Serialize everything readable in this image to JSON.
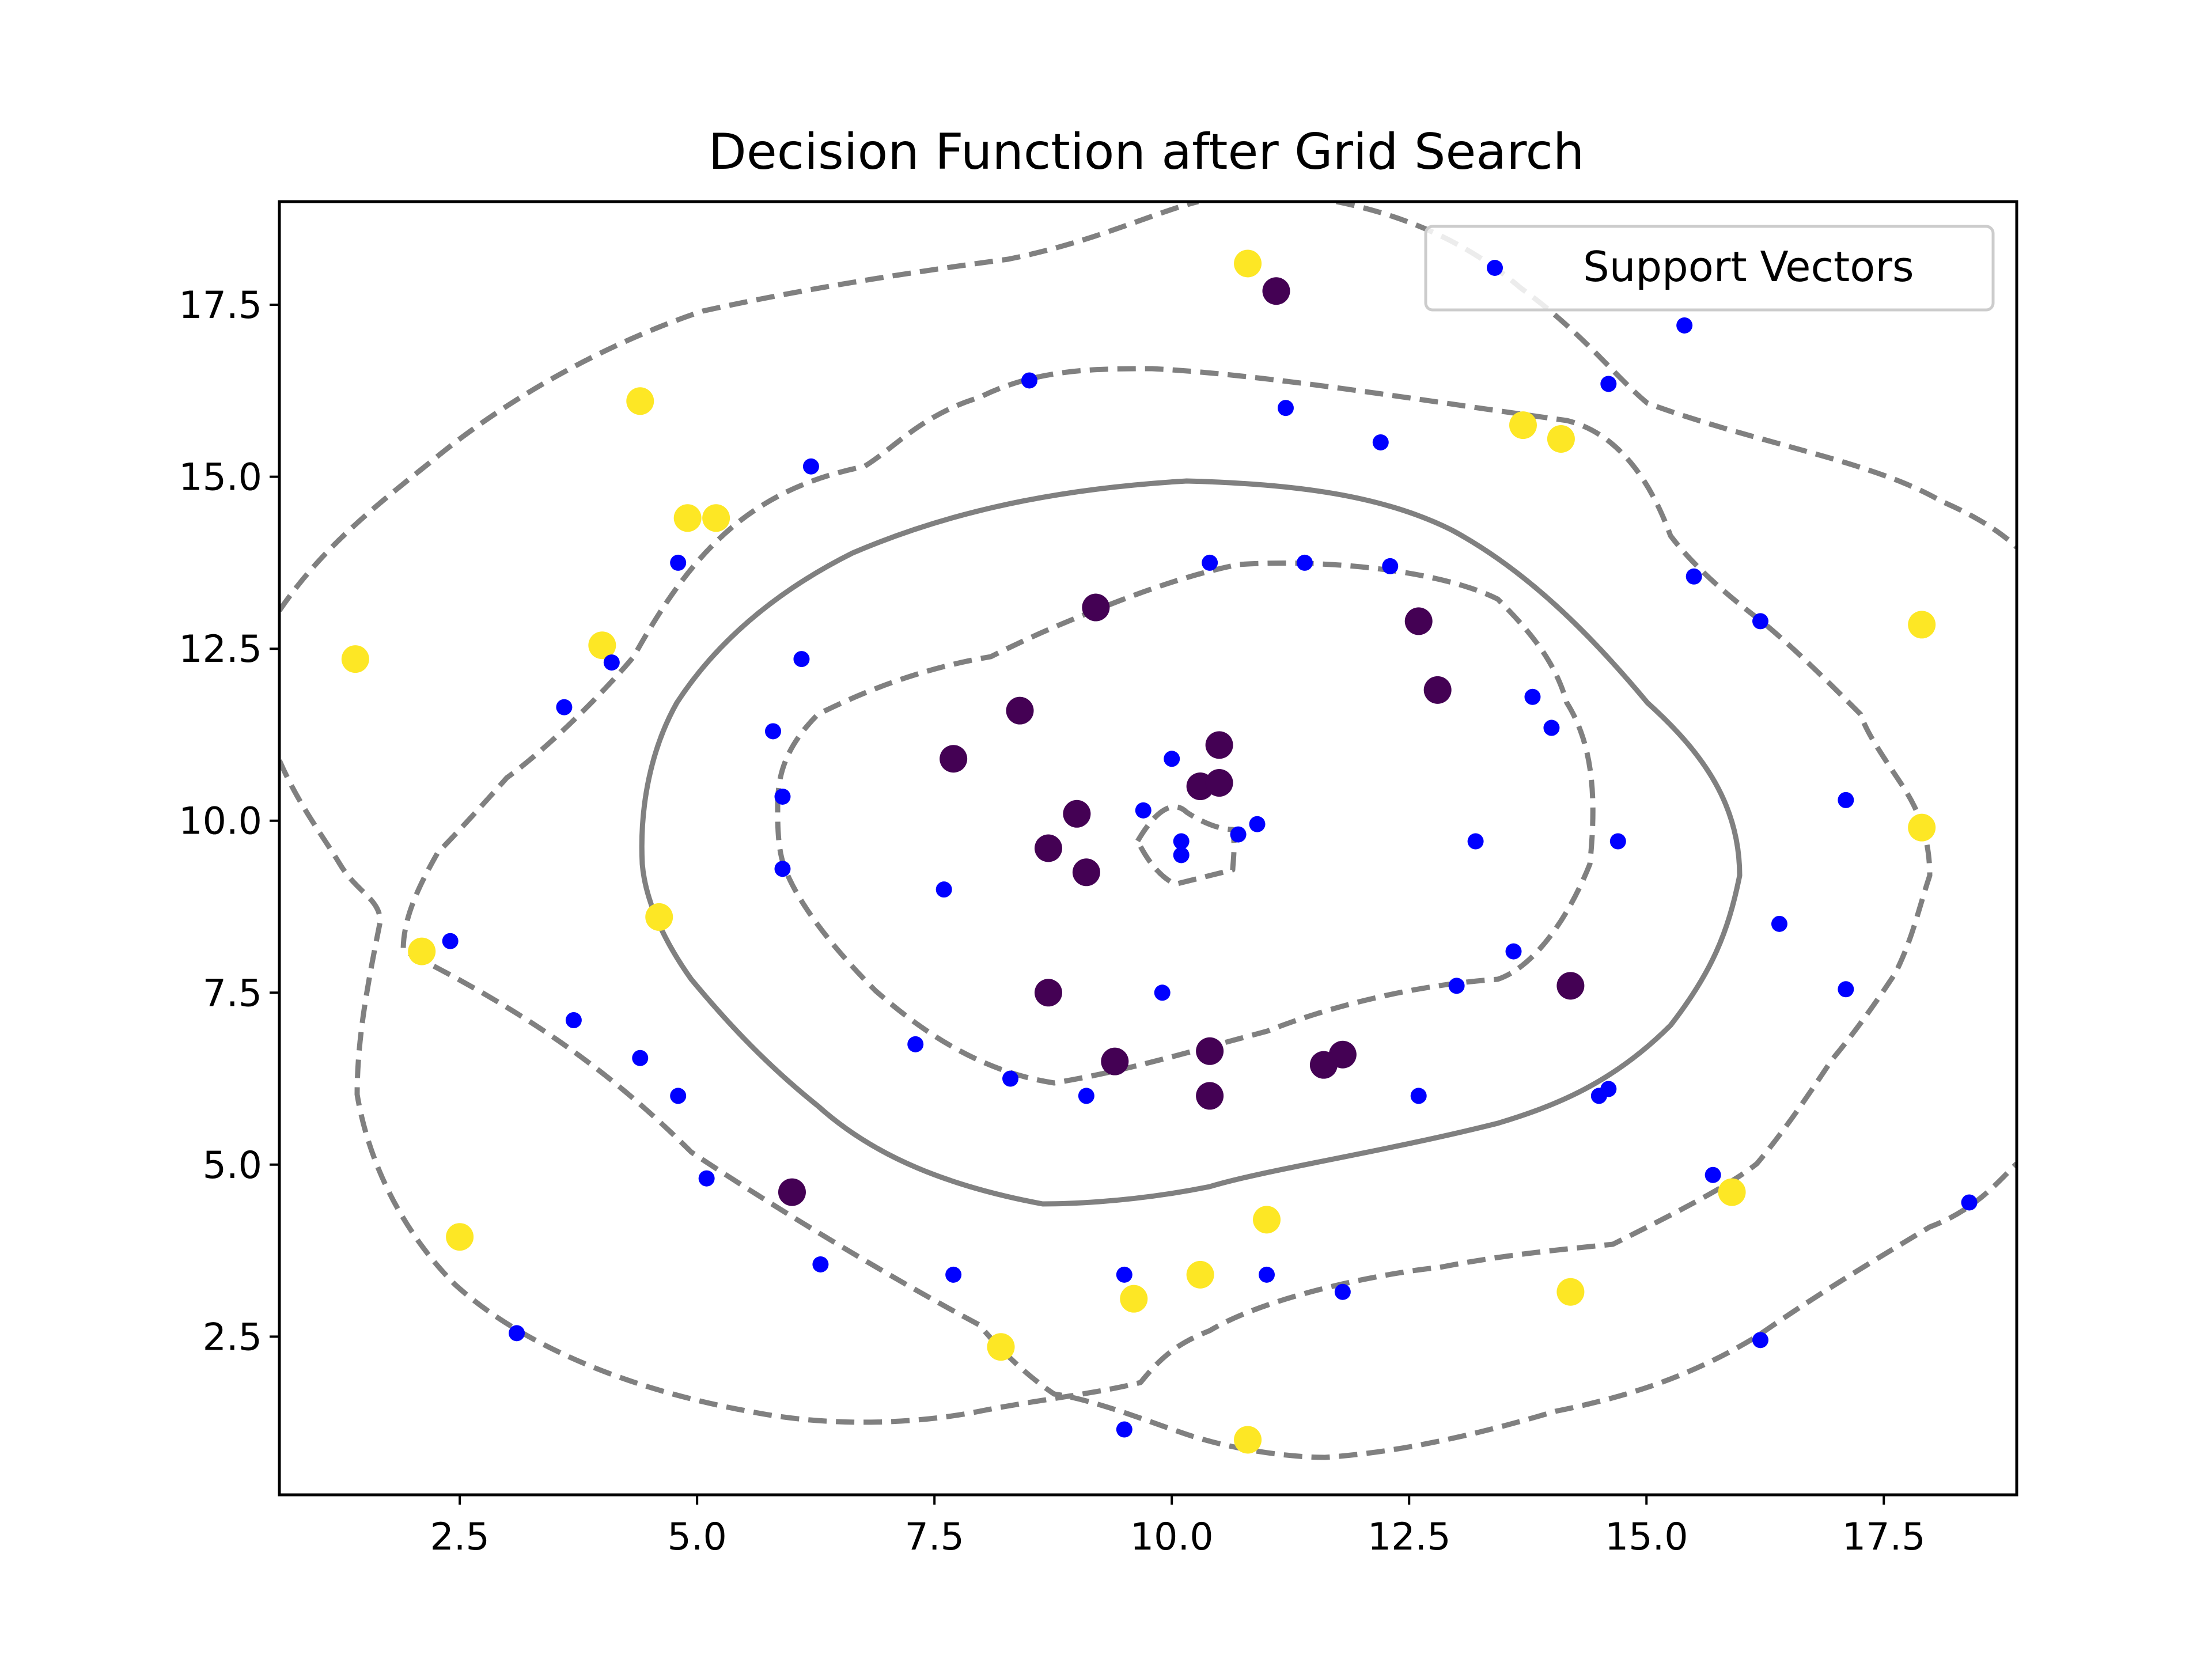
{
  "chart_data": {
    "type": "scatter",
    "title": "Decision Function after Grid Search",
    "xlabel": "",
    "ylabel": "",
    "xlim": [
      0.6,
      18.9
    ],
    "ylim": [
      0.2,
      19.0
    ],
    "x_ticks": [
      2.5,
      5.0,
      7.5,
      10.0,
      12.5,
      15.0,
      17.5
    ],
    "y_ticks": [
      2.5,
      5.0,
      7.5,
      10.0,
      12.5,
      15.0,
      17.5
    ],
    "x_tick_labels": [
      "2.5",
      "5.0",
      "7.5",
      "10.0",
      "12.5",
      "15.0",
      "17.5"
    ],
    "y_tick_labels": [
      "2.5",
      "5.0",
      "7.5",
      "10.0",
      "12.5",
      "15.0",
      "17.5"
    ],
    "grid": false,
    "legend": {
      "position": "top-right",
      "entries": [
        "Support Vectors"
      ]
    },
    "colors": {
      "class_0": "#440154",
      "class_1": "#fde725",
      "support_vectors": "#0000ff",
      "contour": "#808080"
    },
    "classes": [
      {
        "color": "#440154",
        "points": [
          [
            11.1,
            17.7
          ],
          [
            9.2,
            13.1
          ],
          [
            12.6,
            12.9
          ],
          [
            12.8,
            11.9
          ],
          [
            8.4,
            11.6
          ],
          [
            7.7,
            10.9
          ],
          [
            10.5,
            11.1
          ],
          [
            10.3,
            10.5
          ],
          [
            10.5,
            10.55
          ],
          [
            9.0,
            10.1
          ],
          [
            8.7,
            9.6
          ],
          [
            9.1,
            9.25
          ],
          [
            8.7,
            7.5
          ],
          [
            14.2,
            7.6
          ],
          [
            10.4,
            6.65
          ],
          [
            11.8,
            6.6
          ],
          [
            11.6,
            6.45
          ],
          [
            9.4,
            6.5
          ],
          [
            10.4,
            6.0
          ],
          [
            6.0,
            4.6
          ]
        ]
      },
      {
        "color": "#fde725",
        "points": [
          [
            10.8,
            18.1
          ],
          [
            4.4,
            16.1
          ],
          [
            13.7,
            15.75
          ],
          [
            14.1,
            15.55
          ],
          [
            4.9,
            14.4
          ],
          [
            5.2,
            14.4
          ],
          [
            4.0,
            12.55
          ],
          [
            1.4,
            12.35
          ],
          [
            17.9,
            12.85
          ],
          [
            17.9,
            9.9
          ],
          [
            4.6,
            8.6
          ],
          [
            2.1,
            8.1
          ],
          [
            2.5,
            3.95
          ],
          [
            15.9,
            4.6
          ],
          [
            11.0,
            4.2
          ],
          [
            10.3,
            3.4
          ],
          [
            9.6,
            3.05
          ],
          [
            14.2,
            3.15
          ],
          [
            8.2,
            2.35
          ],
          [
            10.8,
            1.0
          ]
        ]
      }
    ],
    "support_vectors": [
      [
        15.4,
        17.2
      ],
      [
        8.5,
        16.4
      ],
      [
        14.6,
        16.35
      ],
      [
        11.2,
        16.0
      ],
      [
        12.2,
        15.5
      ],
      [
        6.2,
        15.15
      ],
      [
        4.8,
        13.75
      ],
      [
        10.4,
        13.75
      ],
      [
        11.4,
        13.75
      ],
      [
        12.3,
        13.7
      ],
      [
        15.5,
        13.55
      ],
      [
        16.2,
        12.9
      ],
      [
        4.1,
        12.3
      ],
      [
        6.1,
        12.35
      ],
      [
        13.8,
        11.8
      ],
      [
        3.6,
        11.65
      ],
      [
        14.0,
        11.35
      ],
      [
        5.8,
        11.3
      ],
      [
        10.0,
        10.9
      ],
      [
        5.9,
        10.35
      ],
      [
        9.7,
        10.15
      ],
      [
        10.9,
        9.95
      ],
      [
        10.7,
        9.8
      ],
      [
        10.1,
        9.7
      ],
      [
        13.2,
        9.7
      ],
      [
        14.7,
        9.7
      ],
      [
        10.1,
        9.5
      ],
      [
        5.9,
        9.3
      ],
      [
        7.6,
        9.0
      ],
      [
        17.1,
        10.3
      ],
      [
        16.4,
        8.5
      ],
      [
        2.4,
        8.25
      ],
      [
        13.6,
        8.1
      ],
      [
        17.1,
        7.55
      ],
      [
        13.0,
        7.6
      ],
      [
        9.9,
        7.5
      ],
      [
        3.7,
        7.1
      ],
      [
        7.3,
        6.75
      ],
      [
        4.4,
        6.55
      ],
      [
        8.3,
        6.25
      ],
      [
        9.1,
        6.0
      ],
      [
        4.8,
        6.0
      ],
      [
        12.6,
        6.0
      ],
      [
        14.5,
        6.0
      ],
      [
        14.6,
        6.1
      ],
      [
        5.1,
        4.8
      ],
      [
        15.7,
        4.85
      ],
      [
        18.4,
        4.45
      ],
      [
        6.3,
        3.55
      ],
      [
        7.7,
        3.4
      ],
      [
        9.5,
        3.4
      ],
      [
        11.0,
        3.4
      ],
      [
        11.8,
        3.15
      ],
      [
        3.1,
        2.55
      ],
      [
        16.2,
        2.45
      ],
      [
        9.5,
        1.15
      ]
    ]
  }
}
